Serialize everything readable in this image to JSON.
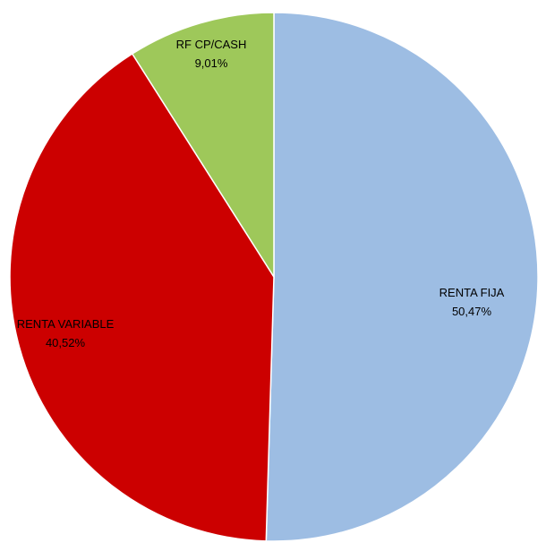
{
  "chart_data": {
    "type": "pie",
    "title": "",
    "start_angle_deg": 0,
    "direction": "clockwise",
    "slices": [
      {
        "name": "RENTA FIJA",
        "value": 50.47,
        "value_label": "50,47%",
        "color": "#9dbde3"
      },
      {
        "name": "RENTA VARIABLE",
        "value": 40.52,
        "value_label": "40,52%",
        "color": "#cc0000"
      },
      {
        "name": "RF CP/CASH",
        "value": 9.01,
        "value_label": "9,01%",
        "color": "#9ec85a"
      }
    ]
  }
}
